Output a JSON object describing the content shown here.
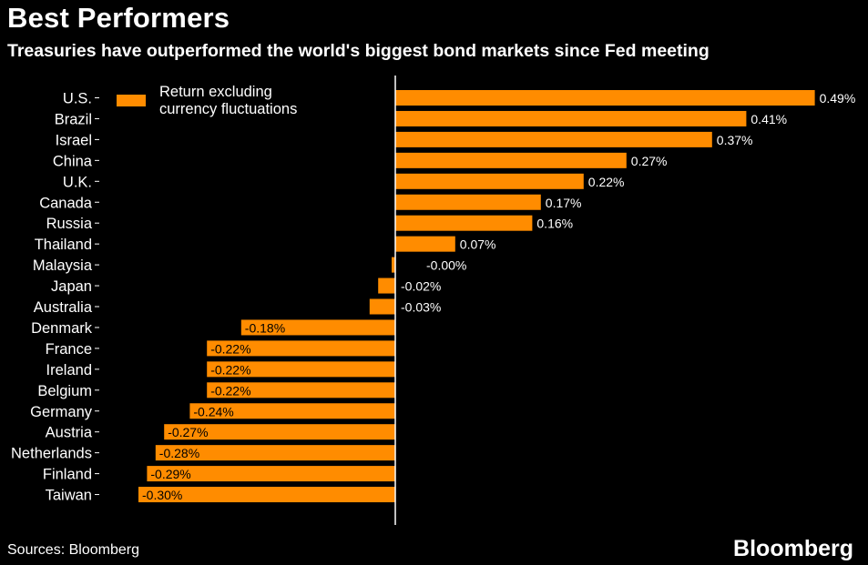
{
  "header": {
    "title": "Best Performers",
    "subtitle": "Treasuries have outperformed the world's biggest bond markets since Fed meeting"
  },
  "legend": {
    "label": "Return excluding currency fluctuations"
  },
  "footer": {
    "source": "Sources: Bloomberg",
    "brand": "Bloomberg"
  },
  "colors": {
    "background": "#000000",
    "bar": "#ff8c00",
    "text": "#ffffff",
    "axis": "#ffffff"
  },
  "chart_data": {
    "type": "bar",
    "orientation": "horizontal",
    "title": "Best Performers",
    "subtitle": "Treasuries have outperformed the world's biggest bond markets since Fed meeting",
    "categories": [
      "U.S.",
      "Brazil",
      "Israel",
      "China",
      "U.K.",
      "Canada",
      "Russia",
      "Thailand",
      "Malaysia",
      "Japan",
      "Australia",
      "Denmark",
      "France",
      "Ireland",
      "Belgium",
      "Germany",
      "Austria",
      "Netherlands",
      "Finland",
      "Taiwan"
    ],
    "values": [
      0.49,
      0.41,
      0.37,
      0.27,
      0.22,
      0.17,
      0.16,
      0.07,
      -0.0,
      -0.02,
      -0.03,
      -0.18,
      -0.22,
      -0.22,
      -0.22,
      -0.24,
      -0.27,
      -0.28,
      -0.29,
      -0.3
    ],
    "value_labels": [
      "0.49%",
      "0.41%",
      "0.37%",
      "0.27%",
      "0.22%",
      "0.17%",
      "0.16%",
      "0.07%",
      "-0.00%",
      "-0.02%",
      "-0.03%",
      "-0.18%",
      "-0.22%",
      "-0.22%",
      "-0.22%",
      "-0.24%",
      "-0.27%",
      "-0.28%",
      "-0.29%",
      "-0.30%"
    ],
    "series": [
      {
        "name": "Return excluding currency fluctuations"
      }
    ],
    "unit": "%",
    "xlim": [
      -0.305,
      0.5
    ],
    "grid": false,
    "legend_position": "top-left"
  }
}
